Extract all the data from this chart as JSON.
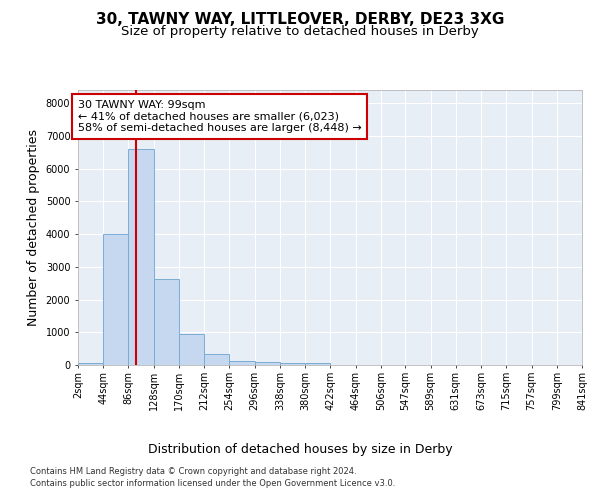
{
  "title_line1": "30, TAWNY WAY, LITTLEOVER, DERBY, DE23 3XG",
  "title_line2": "Size of property relative to detached houses in Derby",
  "xlabel": "Distribution of detached houses by size in Derby",
  "ylabel": "Number of detached properties",
  "bar_values": [
    75,
    4000,
    6600,
    2620,
    960,
    330,
    130,
    90,
    70,
    50,
    0,
    0,
    0,
    0,
    0,
    0,
    0,
    0,
    0,
    0
  ],
  "bin_edges": [
    2,
    44,
    86,
    128,
    170,
    212,
    254,
    296,
    338,
    380,
    422,
    464,
    506,
    547,
    589,
    631,
    673,
    715,
    757,
    799,
    841
  ],
  "bar_color": "#c5d8f0",
  "bar_edge_color": "#7aadd4",
  "vline_x": 99,
  "vline_color": "#cc0000",
  "annotation_text": "30 TAWNY WAY: 99sqm\n← 41% of detached houses are smaller (6,023)\n58% of semi-detached houses are larger (8,448) →",
  "annotation_box_color": "#ffffff",
  "annotation_border_color": "#cc0000",
  "ylim": [
    0,
    8400
  ],
  "yticks": [
    0,
    1000,
    2000,
    3000,
    4000,
    5000,
    6000,
    7000,
    8000
  ],
  "plot_bg_color": "#e8eef6",
  "footer_line1": "Contains HM Land Registry data © Crown copyright and database right 2024.",
  "footer_line2": "Contains public sector information licensed under the Open Government Licence v3.0.",
  "title_fontsize": 11,
  "subtitle_fontsize": 9.5,
  "tick_label_fontsize": 7,
  "ylabel_fontsize": 9,
  "xlabel_fontsize": 9,
  "annotation_fontsize": 8,
  "footer_fontsize": 6
}
